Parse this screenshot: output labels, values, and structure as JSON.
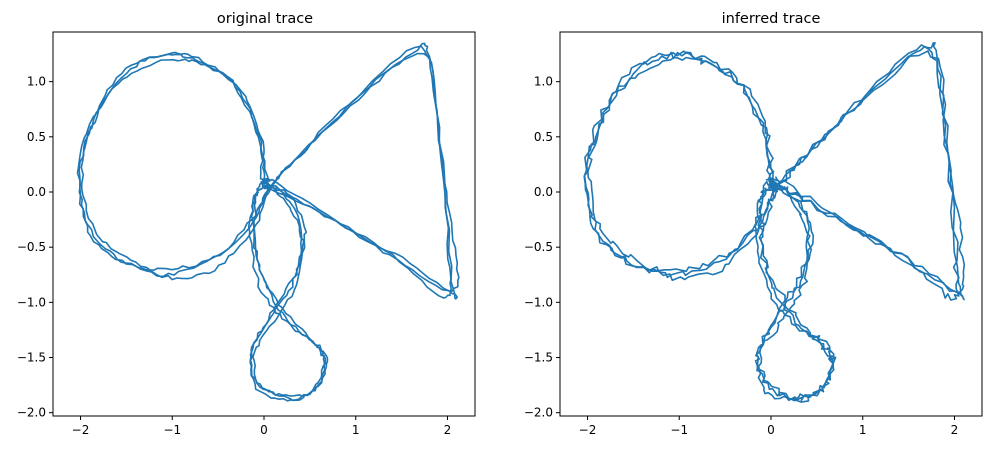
{
  "chart_data": [
    {
      "type": "line",
      "title": "original trace",
      "xlim": [
        -2.3,
        2.3
      ],
      "ylim": [
        -2.03,
        1.45
      ],
      "xticks": [
        -2,
        -1,
        0,
        1,
        2
      ],
      "xtick_labels": [
        "−2",
        "−1",
        "0",
        "1",
        "2"
      ],
      "yticks": [
        1.0,
        0.5,
        0.0,
        -0.5,
        -1.0,
        -1.5,
        -2.0
      ],
      "ytick_labels": [
        "1.0",
        "0.5",
        "0.0",
        "−0.5",
        "−1.0",
        "−1.5",
        "−2.0"
      ],
      "grid": false,
      "color": "#1f77b4",
      "noise": 0.015,
      "series": [
        {
          "values": [
            [
              -0.02,
              0.1
            ],
            [
              -0.05,
              0.5
            ],
            [
              -0.3,
              0.95
            ],
            [
              -0.7,
              1.18
            ],
            [
              -1.05,
              1.24
            ],
            [
              -1.45,
              1.12
            ],
            [
              -1.82,
              0.7
            ],
            [
              -2.0,
              0.2
            ],
            [
              -1.92,
              -0.3
            ],
            [
              -1.6,
              -0.6
            ],
            [
              -1.15,
              -0.7
            ],
            [
              -0.6,
              -0.62
            ],
            [
              -0.15,
              -0.32
            ],
            [
              0.05,
              0.02
            ],
            [
              0.4,
              0.35
            ],
            [
              1.0,
              0.85
            ],
            [
              1.7,
              1.32
            ],
            [
              1.9,
              0.6
            ],
            [
              2.05,
              -0.8
            ],
            [
              2.05,
              -0.92
            ],
            [
              1.5,
              -0.6
            ],
            [
              0.85,
              -0.3
            ],
            [
              0.2,
              0.05
            ],
            [
              0.0,
              0.1
            ],
            [
              -0.1,
              -0.05
            ],
            [
              -0.15,
              -0.35
            ],
            [
              -0.05,
              -0.85
            ],
            [
              0.2,
              -1.15
            ],
            [
              0.5,
              -1.35
            ],
            [
              0.68,
              -1.5
            ],
            [
              0.6,
              -1.75
            ],
            [
              0.3,
              -1.88
            ],
            [
              -0.05,
              -1.8
            ],
            [
              -0.15,
              -1.5
            ],
            [
              0.05,
              -1.15
            ],
            [
              0.3,
              -0.8
            ],
            [
              0.45,
              -0.4
            ],
            [
              0.3,
              -0.05
            ],
            [
              0.05,
              0.05
            ]
          ]
        },
        {
          "values": [
            [
              0.05,
              0.05
            ],
            [
              -0.08,
              0.55
            ],
            [
              -0.35,
              1.0
            ],
            [
              -0.75,
              1.22
            ],
            [
              -1.1,
              1.25
            ],
            [
              -1.55,
              1.08
            ],
            [
              -1.9,
              0.6
            ],
            [
              -2.02,
              0.1
            ],
            [
              -1.88,
              -0.4
            ],
            [
              -1.5,
              -0.65
            ],
            [
              -1.05,
              -0.75
            ],
            [
              -0.5,
              -0.58
            ],
            [
              -0.1,
              -0.2
            ],
            [
              0.1,
              0.08
            ],
            [
              0.5,
              0.42
            ],
            [
              1.1,
              0.9
            ],
            [
              1.65,
              1.28
            ],
            [
              1.8,
              1.22
            ],
            [
              1.95,
              0.2
            ],
            [
              2.08,
              -0.5
            ],
            [
              2.05,
              -0.9
            ],
            [
              1.45,
              -0.62
            ],
            [
              0.8,
              -0.28
            ],
            [
              0.15,
              0.03
            ],
            [
              0.0,
              0.05
            ],
            [
              -0.12,
              -0.1
            ],
            [
              -0.1,
              -0.5
            ],
            [
              0.05,
              -0.9
            ],
            [
              0.3,
              -1.2
            ],
            [
              0.6,
              -1.4
            ],
            [
              0.65,
              -1.6
            ],
            [
              0.5,
              -1.82
            ],
            [
              0.25,
              -1.87
            ],
            [
              -0.1,
              -1.7
            ],
            [
              -0.12,
              -1.4
            ],
            [
              0.1,
              -1.1
            ],
            [
              0.35,
              -0.75
            ],
            [
              0.4,
              -0.3
            ],
            [
              0.2,
              0.0
            ],
            [
              0.0,
              0.08
            ]
          ]
        },
        {
          "values": [
            [
              0.0,
              0.12
            ],
            [
              -0.02,
              0.45
            ],
            [
              -0.25,
              0.92
            ],
            [
              -0.65,
              1.15
            ],
            [
              -1.0,
              1.2
            ],
            [
              -1.5,
              1.05
            ],
            [
              -1.85,
              0.65
            ],
            [
              -1.98,
              0.15
            ],
            [
              -1.85,
              -0.35
            ],
            [
              -1.45,
              -0.62
            ],
            [
              -1.0,
              -0.78
            ],
            [
              -0.55,
              -0.7
            ],
            [
              -0.12,
              -0.35
            ],
            [
              0.08,
              0.05
            ],
            [
              0.45,
              0.38
            ],
            [
              1.05,
              0.88
            ],
            [
              1.75,
              1.25
            ],
            [
              1.92,
              0.4
            ],
            [
              2.02,
              -0.7
            ],
            [
              1.95,
              -0.95
            ],
            [
              1.4,
              -0.58
            ],
            [
              0.75,
              -0.25
            ],
            [
              0.15,
              0.0
            ],
            [
              -0.05,
              0.02
            ],
            [
              -0.1,
              -0.2
            ],
            [
              -0.05,
              -0.7
            ],
            [
              0.25,
              -1.1
            ],
            [
              0.55,
              -1.38
            ],
            [
              0.66,
              -1.55
            ],
            [
              0.55,
              -1.8
            ],
            [
              0.25,
              -1.85
            ],
            [
              -0.05,
              -1.75
            ],
            [
              -0.1,
              -1.45
            ],
            [
              0.1,
              -1.18
            ],
            [
              0.35,
              -0.85
            ],
            [
              0.42,
              -0.45
            ],
            [
              0.25,
              -0.1
            ],
            [
              0.02,
              0.1
            ]
          ]
        }
      ]
    },
    {
      "type": "line",
      "title": "inferred trace",
      "xlim": [
        -2.3,
        2.3
      ],
      "ylim": [
        -2.03,
        1.45
      ],
      "xticks": [
        -2,
        -1,
        0,
        1,
        2
      ],
      "xtick_labels": [
        "−2",
        "−1",
        "0",
        "1",
        "2"
      ],
      "yticks": [
        1.0,
        0.5,
        0.0,
        -0.5,
        -1.0,
        -1.5,
        -2.0
      ],
      "ytick_labels": [
        "1.0",
        "0.5",
        "0.0",
        "−0.5",
        "−1.0",
        "−1.5",
        "−2.0"
      ],
      "grid": false,
      "color": "#1f77b4",
      "noise": 0.03,
      "series": [
        {
          "values": [
            [
              -0.02,
              0.1
            ],
            [
              -0.05,
              0.5
            ],
            [
              -0.3,
              0.95
            ],
            [
              -0.7,
              1.18
            ],
            [
              -1.05,
              1.24
            ],
            [
              -1.45,
              1.12
            ],
            [
              -1.82,
              0.7
            ],
            [
              -2.0,
              0.2
            ],
            [
              -1.92,
              -0.3
            ],
            [
              -1.6,
              -0.6
            ],
            [
              -1.15,
              -0.7
            ],
            [
              -0.6,
              -0.62
            ],
            [
              -0.15,
              -0.32
            ],
            [
              0.05,
              0.02
            ],
            [
              0.4,
              0.35
            ],
            [
              1.0,
              0.85
            ],
            [
              1.7,
              1.32
            ],
            [
              1.9,
              0.6
            ],
            [
              2.05,
              -0.8
            ],
            [
              2.05,
              -0.92
            ],
            [
              1.5,
              -0.6
            ],
            [
              0.85,
              -0.3
            ],
            [
              0.2,
              0.05
            ],
            [
              0.0,
              0.1
            ],
            [
              -0.1,
              -0.05
            ],
            [
              -0.15,
              -0.35
            ],
            [
              -0.05,
              -0.85
            ],
            [
              0.2,
              -1.15
            ],
            [
              0.5,
              -1.35
            ],
            [
              0.68,
              -1.5
            ],
            [
              0.6,
              -1.75
            ],
            [
              0.3,
              -1.88
            ],
            [
              -0.05,
              -1.8
            ],
            [
              -0.15,
              -1.5
            ],
            [
              0.05,
              -1.15
            ],
            [
              0.3,
              -0.8
            ],
            [
              0.45,
              -0.4
            ],
            [
              0.3,
              -0.05
            ],
            [
              0.05,
              0.05
            ]
          ]
        },
        {
          "values": [
            [
              0.05,
              0.05
            ],
            [
              -0.08,
              0.55
            ],
            [
              -0.35,
              1.0
            ],
            [
              -0.75,
              1.22
            ],
            [
              -1.1,
              1.25
            ],
            [
              -1.55,
              1.08
            ],
            [
              -1.9,
              0.6
            ],
            [
              -2.02,
              0.1
            ],
            [
              -1.88,
              -0.4
            ],
            [
              -1.5,
              -0.65
            ],
            [
              -1.05,
              -0.75
            ],
            [
              -0.5,
              -0.58
            ],
            [
              -0.1,
              -0.2
            ],
            [
              0.1,
              0.08
            ],
            [
              0.5,
              0.42
            ],
            [
              1.1,
              0.9
            ],
            [
              1.65,
              1.28
            ],
            [
              1.8,
              1.22
            ],
            [
              1.95,
              0.2
            ],
            [
              2.08,
              -0.5
            ],
            [
              2.05,
              -0.9
            ],
            [
              1.45,
              -0.62
            ],
            [
              0.8,
              -0.28
            ],
            [
              0.15,
              0.03
            ],
            [
              0.0,
              0.05
            ],
            [
              -0.12,
              -0.1
            ],
            [
              -0.1,
              -0.5
            ],
            [
              0.05,
              -0.9
            ],
            [
              0.3,
              -1.2
            ],
            [
              0.6,
              -1.4
            ],
            [
              0.65,
              -1.6
            ],
            [
              0.5,
              -1.82
            ],
            [
              0.25,
              -1.87
            ],
            [
              -0.1,
              -1.7
            ],
            [
              -0.12,
              -1.4
            ],
            [
              0.1,
              -1.1
            ],
            [
              0.35,
              -0.75
            ],
            [
              0.4,
              -0.3
            ],
            [
              0.2,
              0.0
            ],
            [
              0.0,
              0.08
            ]
          ]
        },
        {
          "values": [
            [
              0.0,
              0.12
            ],
            [
              -0.02,
              0.45
            ],
            [
              -0.25,
              0.92
            ],
            [
              -0.65,
              1.15
            ],
            [
              -1.0,
              1.2
            ],
            [
              -1.5,
              1.05
            ],
            [
              -1.85,
              0.65
            ],
            [
              -1.98,
              0.15
            ],
            [
              -1.85,
              -0.35
            ],
            [
              -1.45,
              -0.62
            ],
            [
              -1.0,
              -0.78
            ],
            [
              -0.55,
              -0.7
            ],
            [
              -0.12,
              -0.35
            ],
            [
              0.08,
              0.05
            ],
            [
              0.45,
              0.38
            ],
            [
              1.05,
              0.88
            ],
            [
              1.75,
              1.25
            ],
            [
              1.92,
              0.4
            ],
            [
              2.02,
              -0.7
            ],
            [
              1.95,
              -0.95
            ],
            [
              1.4,
              -0.58
            ],
            [
              0.75,
              -0.25
            ],
            [
              0.15,
              0.0
            ],
            [
              -0.05,
              0.02
            ],
            [
              -0.1,
              -0.2
            ],
            [
              -0.05,
              -0.7
            ],
            [
              0.25,
              -1.1
            ],
            [
              0.55,
              -1.38
            ],
            [
              0.66,
              -1.55
            ],
            [
              0.55,
              -1.8
            ],
            [
              0.25,
              -1.85
            ],
            [
              -0.05,
              -1.75
            ],
            [
              -0.1,
              -1.45
            ],
            [
              0.1,
              -1.18
            ],
            [
              0.35,
              -0.85
            ],
            [
              0.42,
              -0.45
            ],
            [
              0.25,
              -0.1
            ],
            [
              0.02,
              0.1
            ]
          ]
        }
      ]
    }
  ]
}
